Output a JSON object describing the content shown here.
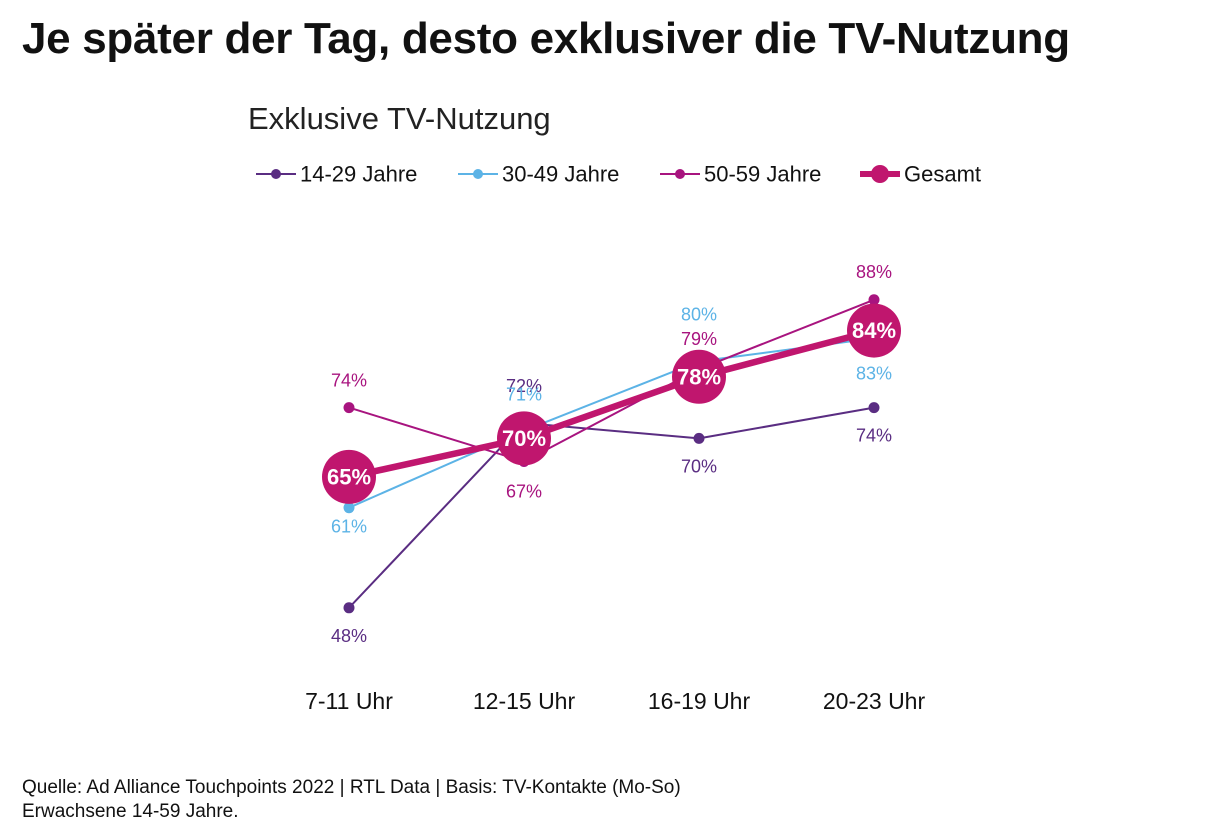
{
  "headline": "Je später der Tag, desto exklusiver die TV-Nutzung",
  "colors": {
    "14-29 Jahre": "#5a2d82",
    "30-49 Jahre": "#5cb3e6",
    "50-59 Jahre": "#a8147f",
    "Gesamt": "#c0166e"
  },
  "chart_data": {
    "type": "line",
    "title": "Exklusive TV-Nutzung",
    "xlabel": "",
    "ylabel": "",
    "categories": [
      "7-11 Uhr",
      "12-15 Uhr",
      "16-19 Uhr",
      "20-23 Uhr"
    ],
    "series": [
      {
        "name": "14-29 Jahre",
        "values": [
          48,
          72,
          70,
          74
        ],
        "labels": [
          "48%",
          "72%",
          "70%",
          "74%"
        ]
      },
      {
        "name": "30-49 Jahre",
        "values": [
          61,
          71,
          80,
          83
        ],
        "labels": [
          "61%",
          "71%",
          "80%",
          "83%"
        ]
      },
      {
        "name": "50-59 Jahre",
        "values": [
          74,
          67,
          79,
          88
        ],
        "labels": [
          "74%",
          "67%",
          "79%",
          "88%"
        ]
      },
      {
        "name": "Gesamt",
        "values": [
          65,
          70,
          78,
          84
        ],
        "labels": [
          "65%",
          "70%",
          "78%",
          "84%"
        ]
      }
    ],
    "legend": "top",
    "grid": false
  },
  "source": {
    "line1": "Quelle: Ad Alliance Touchpoints 2022 | RTL Data | Basis: TV-Kontakte (Mo-So)",
    "line2": "Erwachsene 14-59 Jahre."
  }
}
